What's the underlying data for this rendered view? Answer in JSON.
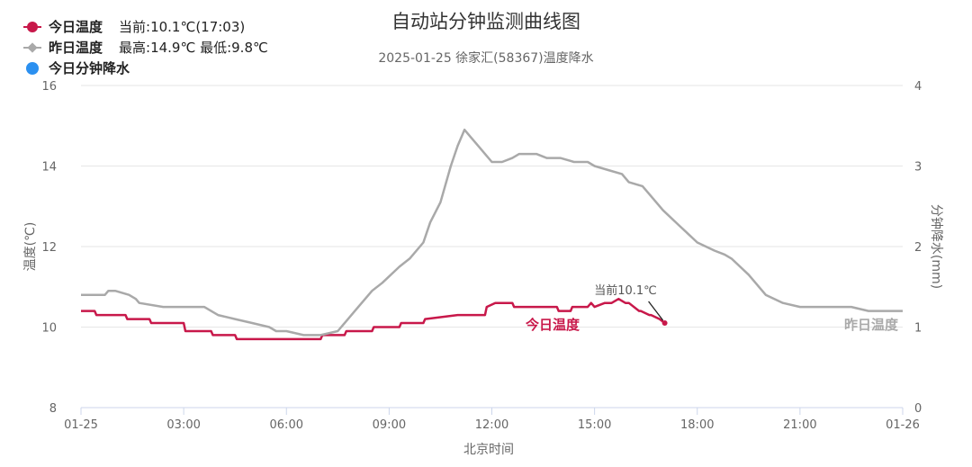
{
  "title": "自动站分钟监测曲线图",
  "subtitle": "2025-01-25 徐家汇(58367)温度降水",
  "legend": {
    "today": {
      "name": "今日温度",
      "info": "当前:10.1℃(17:03)"
    },
    "yesterday": {
      "name": "昨日温度",
      "info": "最高:14.9℃ 最低:9.8℃"
    },
    "precip": {
      "name": "今日分钟降水"
    }
  },
  "colors": {
    "today": "#c8184a",
    "yesterday": "#a9a9a9",
    "precip": "#2b90f0",
    "grid": "#e6e6e6",
    "axis_text": "#666666"
  },
  "chart_data": {
    "type": "line",
    "title": "自动站分钟监测曲线图",
    "subtitle": "2025-01-25 徐家汇(58367)温度降水",
    "xlabel": "北京时间",
    "ylabel_left": "温度(℃)",
    "ylabel_right": "分钟降水(mm)",
    "x_unit": "hour",
    "xlim": [
      0,
      24
    ],
    "ylim_left": [
      8,
      16
    ],
    "ylim_right": [
      0,
      4
    ],
    "x_ticks": [
      {
        "value": 0,
        "label": "01-25"
      },
      {
        "value": 3,
        "label": "03:00"
      },
      {
        "value": 6,
        "label": "06:00"
      },
      {
        "value": 9,
        "label": "09:00"
      },
      {
        "value": 12,
        "label": "12:00"
      },
      {
        "value": 15,
        "label": "15:00"
      },
      {
        "value": 18,
        "label": "18:00"
      },
      {
        "value": 21,
        "label": "21:00"
      },
      {
        "value": 24,
        "label": "01-26"
      }
    ],
    "y_ticks_left": [
      8,
      10,
      12,
      14,
      16
    ],
    "y_ticks_right": [
      0,
      1,
      2,
      3,
      4
    ],
    "grid": true,
    "legend_position": "top-left",
    "annotations": [
      {
        "text": "当前10.1℃",
        "x": 17.05,
        "y": 10.1,
        "series": "今日温度"
      }
    ],
    "series": [
      {
        "name": "今日温度",
        "axis": "left",
        "line_label": "今日温度",
        "x": [
          0,
          0.4,
          0.45,
          1.3,
          1.35,
          2.0,
          2.05,
          3.0,
          3.05,
          3.8,
          3.85,
          4.5,
          4.55,
          5.0,
          5.5,
          6.0,
          6.5,
          7.0,
          7.05,
          7.7,
          7.75,
          8.5,
          8.55,
          9.3,
          9.35,
          10.0,
          10.05,
          11.0,
          11.5,
          11.8,
          11.85,
          12.1,
          12.4,
          12.6,
          12.65,
          13.5,
          13.55,
          13.9,
          13.95,
          14.3,
          14.35,
          14.8,
          14.9,
          15.0,
          15.3,
          15.5,
          15.7,
          15.9,
          16.0,
          16.3,
          16.35,
          16.6,
          16.65,
          16.9,
          17.05
        ],
        "y": [
          10.4,
          10.4,
          10.3,
          10.3,
          10.2,
          10.2,
          10.1,
          10.1,
          9.9,
          9.9,
          9.8,
          9.8,
          9.7,
          9.7,
          9.7,
          9.7,
          9.7,
          9.7,
          9.8,
          9.8,
          9.9,
          9.9,
          10.0,
          10.0,
          10.1,
          10.1,
          10.2,
          10.3,
          10.3,
          10.3,
          10.5,
          10.6,
          10.6,
          10.6,
          10.5,
          10.5,
          10.5,
          10.5,
          10.4,
          10.4,
          10.5,
          10.5,
          10.6,
          10.5,
          10.6,
          10.6,
          10.7,
          10.6,
          10.6,
          10.4,
          10.4,
          10.3,
          10.3,
          10.2,
          10.1
        ]
      },
      {
        "name": "昨日温度",
        "axis": "left",
        "line_label": "昨日温度",
        "x": [
          0,
          0.7,
          0.8,
          1.0,
          1.4,
          1.6,
          1.7,
          2.4,
          3.0,
          3.6,
          4.0,
          4.5,
          5.0,
          5.5,
          5.7,
          6.0,
          6.5,
          7.0,
          7.5,
          7.6,
          8.0,
          8.5,
          8.8,
          9.3,
          9.6,
          10.0,
          10.2,
          10.5,
          10.8,
          11.0,
          11.2,
          11.4,
          11.6,
          11.8,
          12.0,
          12.3,
          12.6,
          12.8,
          13.0,
          13.3,
          13.6,
          13.8,
          14.0,
          14.4,
          14.8,
          15.0,
          15.4,
          15.8,
          16.0,
          16.4,
          16.6,
          17.0,
          17.5,
          18.0,
          18.5,
          18.8,
          19.0,
          19.5,
          20.0,
          20.5,
          21.0,
          21.5,
          22.0,
          22.5,
          23.0,
          24.0
        ],
        "y": [
          10.8,
          10.8,
          10.9,
          10.9,
          10.8,
          10.7,
          10.6,
          10.5,
          10.5,
          10.5,
          10.3,
          10.2,
          10.1,
          10.0,
          9.9,
          9.9,
          9.8,
          9.8,
          9.9,
          10.0,
          10.4,
          10.9,
          11.1,
          11.5,
          11.7,
          12.1,
          12.6,
          13.1,
          14.0,
          14.5,
          14.9,
          14.7,
          14.5,
          14.3,
          14.1,
          14.1,
          14.2,
          14.3,
          14.3,
          14.3,
          14.2,
          14.2,
          14.2,
          14.1,
          14.1,
          14.0,
          13.9,
          13.8,
          13.6,
          13.5,
          13.3,
          12.9,
          12.5,
          12.1,
          11.9,
          11.8,
          11.7,
          11.3,
          10.8,
          10.6,
          10.5,
          10.5,
          10.5,
          10.5,
          10.4,
          10.4
        ]
      },
      {
        "name": "今日分钟降水",
        "axis": "right",
        "x": [],
        "y": []
      }
    ]
  }
}
